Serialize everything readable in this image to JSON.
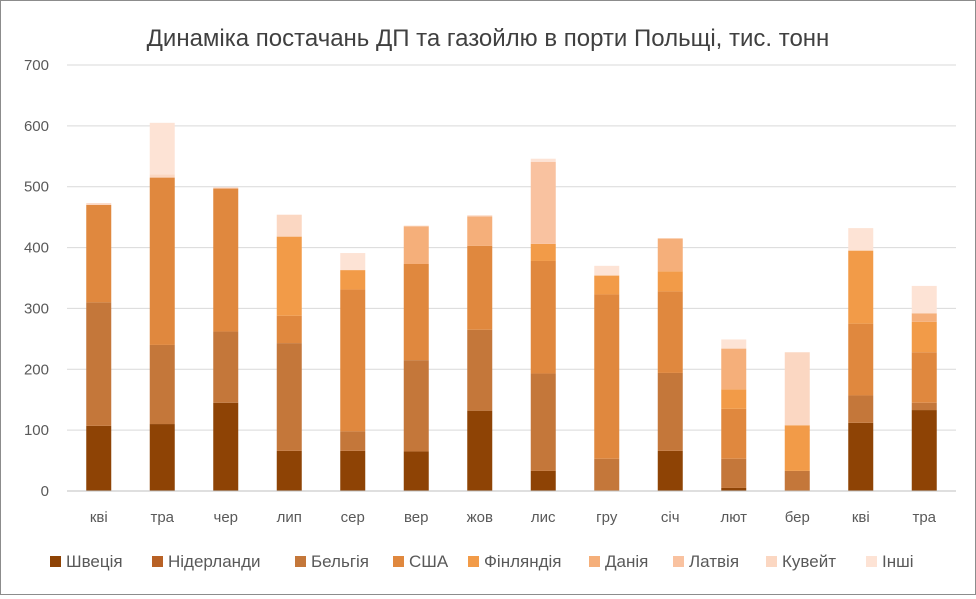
{
  "chart_data": {
    "type": "bar",
    "stacked": true,
    "title": "Динаміка постачань ДП та газойлю в порти Польщі, тис. тонн",
    "xlabel": "",
    "ylabel": "",
    "ylim": [
      0,
      700
    ],
    "yticks": [
      0,
      100,
      200,
      300,
      400,
      500,
      600,
      700
    ],
    "grid": true,
    "legend_position": "bottom",
    "categories": [
      "кві",
      "тра",
      "чер",
      "лип",
      "сер",
      "вер",
      "жов",
      "лис",
      "гру",
      "січ",
      "лют",
      "бер",
      "кві",
      "тра"
    ],
    "series": [
      {
        "name": "Швеція",
        "color": "#8e4305",
        "values": [
          107,
          110,
          145,
          66,
          66,
          65,
          132,
          33,
          0,
          66,
          5,
          0,
          112,
          133
        ]
      },
      {
        "name": "Нідерланди",
        "color": "#b86125",
        "values": [
          0,
          0,
          0,
          0,
          0,
          0,
          0,
          0,
          0,
          0,
          0,
          0,
          0,
          0
        ]
      },
      {
        "name": "Бельгія",
        "color": "#c4773a",
        "values": [
          203,
          130,
          117,
          177,
          32,
          150,
          133,
          160,
          53,
          128,
          48,
          33,
          45,
          12
        ]
      },
      {
        "name": "США",
        "color": "#e0883e",
        "values": [
          160,
          275,
          235,
          45,
          233,
          158,
          138,
          185,
          270,
          134,
          82,
          0,
          118,
          83
        ]
      },
      {
        "name": "Фінляндія",
        "color": "#f29b48",
        "values": [
          0,
          0,
          0,
          130,
          32,
          0,
          0,
          28,
          31,
          33,
          32,
          75,
          120,
          50
        ]
      },
      {
        "name": "Данія",
        "color": "#f5af7a",
        "values": [
          0,
          0,
          0,
          0,
          0,
          62,
          48,
          0,
          0,
          54,
          67,
          0,
          0,
          14
        ]
      },
      {
        "name": "Латвія",
        "color": "#f9c2a0",
        "values": [
          0,
          0,
          0,
          0,
          0,
          0,
          0,
          135,
          0,
          0,
          0,
          0,
          0,
          0
        ]
      },
      {
        "name": "Кувейт",
        "color": "#fbd7c2",
        "values": [
          3,
          5,
          2,
          36,
          0,
          1,
          2,
          0,
          0,
          0,
          0,
          120,
          0,
          0
        ]
      },
      {
        "name": "Інші",
        "color": "#fde3d5",
        "values": [
          0,
          85,
          0,
          0,
          28,
          0,
          0,
          5,
          16,
          0,
          15,
          0,
          37,
          45
        ]
      }
    ]
  }
}
